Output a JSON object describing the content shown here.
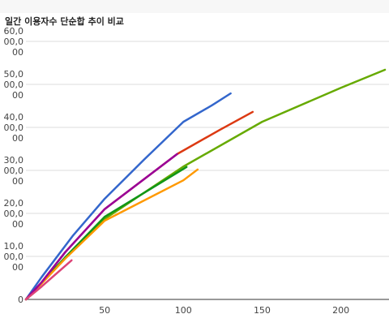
{
  "chart_data": {
    "type": "line",
    "title": "일간 이용자수 단순합 추이 비교",
    "xlim": [
      0,
      228
    ],
    "xticks": [
      50,
      100,
      150,
      200
    ],
    "ylim": [
      0,
      60000000
    ],
    "yticks": [
      0,
      {
        "value": 10000000,
        "label": "10,000,000"
      },
      {
        "value": 20000000,
        "label": "20,000,000"
      },
      {
        "value": 30000000,
        "label": "30,000,000"
      },
      {
        "value": 40000000,
        "label": "40,000,000"
      },
      {
        "value": 50000000,
        "label": "50,000,000"
      },
      {
        "value": 60000000,
        "label": "60,000,000"
      }
    ],
    "grid": true,
    "series": [
      {
        "color": "#3366cc",
        "x": [
          0,
          10,
          30,
          50,
          75,
          100,
          118,
          130
        ],
        "values": [
          0,
          5200000,
          14900000,
          23400000,
          32500000,
          41300000,
          45100000,
          47900000
        ]
      },
      {
        "color": "#dc3912",
        "x": [
          0,
          10,
          25,
          50,
          96,
          123,
          144
        ],
        "values": [
          0,
          4000000,
          11000000,
          21000000,
          33800000,
          39400000,
          43600000
        ]
      },
      {
        "color": "#66aa00",
        "x": [
          0,
          10,
          25,
          50,
          100,
          150,
          200,
          228
        ],
        "values": [
          0,
          3800000,
          9600000,
          18700000,
          30900000,
          41300000,
          49200000,
          53400000
        ]
      },
      {
        "color": "#109618",
        "x": [
          0,
          10,
          25,
          50,
          102
        ],
        "values": [
          0,
          3900000,
          9800000,
          19200000,
          30800000
        ]
      },
      {
        "color": "#ff9900",
        "x": [
          0,
          10,
          25,
          50,
          100,
          109
        ],
        "values": [
          0,
          3700000,
          9500000,
          18300000,
          27700000,
          30200000
        ]
      },
      {
        "color": "#990099",
        "x": [
          0,
          10,
          25,
          50,
          96
        ],
        "values": [
          0,
          4000000,
          11000000,
          21000000,
          33800000
        ]
      },
      {
        "color": "#dd4477",
        "x": [
          0,
          10,
          29
        ],
        "values": [
          0,
          3000000,
          9100000
        ]
      }
    ]
  }
}
